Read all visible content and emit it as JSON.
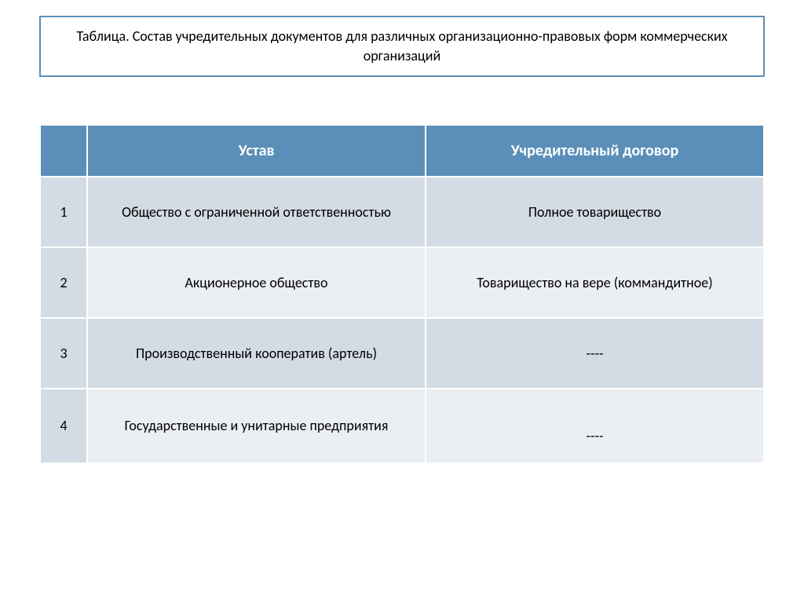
{
  "title": "Таблица. Состав учредительных документов для различных организационно-правовых форм коммерческих организаций",
  "table": {
    "type": "table",
    "header_bg_color": "#5b8fb9",
    "header_text_color": "#ffffff",
    "row_odd_bg_color": "#d3dbe4",
    "row_even_bg_color": "#ebeef3",
    "cell_num_bg_color": "#d3dbe4",
    "border_color": "#ffffff",
    "title_border_color": "#5b8fb9",
    "font_family": "Calibri",
    "header_fontsize": 20,
    "cell_fontsize": 18,
    "title_fontsize": 18,
    "columns": [
      {
        "key": "num",
        "label": "",
        "width": 60,
        "align": "center"
      },
      {
        "key": "charter",
        "label": "Устав",
        "align": "center"
      },
      {
        "key": "contract",
        "label": "Учредительный договор",
        "align": "center"
      }
    ],
    "rows": [
      {
        "num": "1",
        "charter": "Общество с ограниченной ответственностью",
        "contract": "Полное товарищество"
      },
      {
        "num": "2",
        "charter": "Акционерное общество",
        "contract": "Товарищество на вере (коммандитное)"
      },
      {
        "num": "3",
        "charter": "Производственный кооператив (артель)",
        "contract": "----"
      },
      {
        "num": "4",
        "charter": "Государственные и унитарные предприятия",
        "contract": "----"
      }
    ]
  }
}
